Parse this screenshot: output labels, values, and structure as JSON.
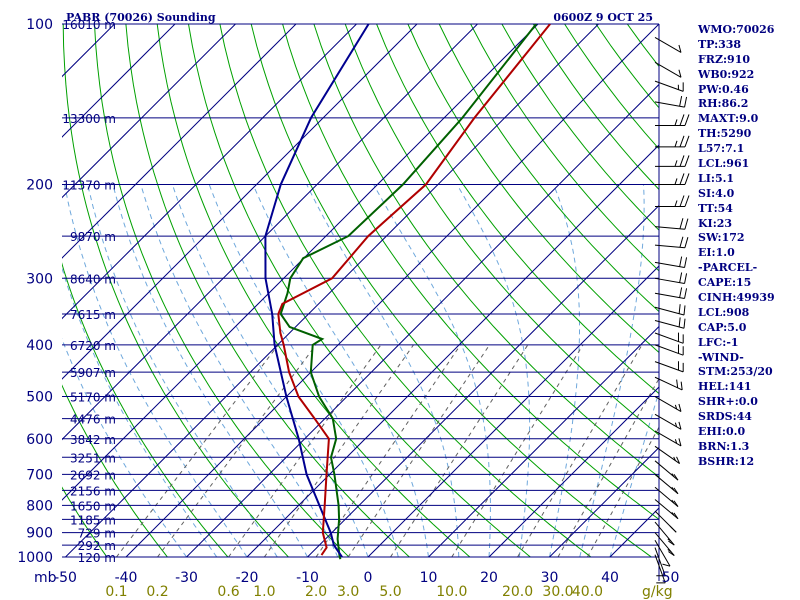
{
  "header": {
    "title": "PABR (70026) Sounding",
    "time": "0600Z  9 OCT 25"
  },
  "chart_data": {
    "type": "line",
    "title": "PABR (70026) Sounding",
    "pressure_levels": [
      100,
      200,
      300,
      400,
      500,
      600,
      700,
      800,
      900,
      1000
    ],
    "height_labels": [
      {
        "p": 100,
        "label": "16010 m"
      },
      {
        "p": 150,
        "label": "13300 m"
      },
      {
        "p": 200,
        "label": "11370 m"
      },
      {
        "p": 250,
        "label": "9870 m"
      },
      {
        "p": 300,
        "label": "8640 m"
      },
      {
        "p": 350,
        "label": "7615 m"
      },
      {
        "p": 400,
        "label": "6720 m"
      },
      {
        "p": 450,
        "label": "5907 m"
      },
      {
        "p": 500,
        "label": "5170 m"
      },
      {
        "p": 550,
        "label": "4476 m"
      },
      {
        "p": 600,
        "label": "3842 m"
      },
      {
        "p": 650,
        "label": "3251 m"
      },
      {
        "p": 700,
        "label": "2692 m"
      },
      {
        "p": 750,
        "label": "2156 m"
      },
      {
        "p": 800,
        "label": "1650 m"
      },
      {
        "p": 850,
        "label": "1185 m"
      },
      {
        "p": 900,
        "label": "729 m"
      },
      {
        "p": 950,
        "label": "292 m"
      },
      {
        "p": 1000,
        "label": "120 m"
      }
    ],
    "temperature_ticks": [
      "-50",
      "-40",
      "-30",
      "-20",
      "-10",
      "0",
      "10",
      "20",
      "30",
      "40",
      "50"
    ],
    "mixing_ratio_ticks": [
      "0.1",
      "0.2",
      "0.6",
      "1.0",
      "2.0",
      "3.0",
      "5.0",
      "10.0",
      "20.0",
      "30.0",
      "40.0"
    ],
    "axis_units": {
      "pressure": "mb",
      "mixing_ratio": "g/kg"
    },
    "series": [
      {
        "kind": "temperature",
        "color": "#006000",
        "points": [
          {
            "p": 1009,
            "t": -4.2
          },
          {
            "p": 1000,
            "t": -4.7
          },
          {
            "p": 925,
            "t": -8.0
          },
          {
            "p": 850,
            "t": -11.0
          },
          {
            "p": 800,
            "t": -13.4
          },
          {
            "p": 700,
            "t": -19.2
          },
          {
            "p": 650,
            "t": -22.6
          },
          {
            "p": 600,
            "t": -24.8
          },
          {
            "p": 550,
            "t": -28.7
          },
          {
            "p": 500,
            "t": -34.6
          },
          {
            "p": 450,
            "t": -40.0
          },
          {
            "p": 400,
            "t": -44.2
          },
          {
            "p": 390,
            "t": -43.6
          },
          {
            "p": 370,
            "t": -51.0
          },
          {
            "p": 350,
            "t": -54.6
          },
          {
            "p": 320,
            "t": -56.9
          },
          {
            "p": 300,
            "t": -58.9
          },
          {
            "p": 275,
            "t": -60.1
          },
          {
            "p": 250,
            "t": -56.3
          },
          {
            "p": 200,
            "t": -55.8
          },
          {
            "p": 150,
            "t": -57.0
          },
          {
            "p": 100,
            "t": -60.3
          }
        ]
      },
      {
        "kind": "dewpoint",
        "color": "#000090",
        "points": [
          {
            "p": 1000,
            "t": -4.3
          },
          {
            "p": 950,
            "t": -7.6
          },
          {
            "p": 900,
            "t": -10.2
          },
          {
            "p": 850,
            "t": -13.3
          },
          {
            "p": 700,
            "t": -23.8
          },
          {
            "p": 600,
            "t": -31.0
          },
          {
            "p": 500,
            "t": -40.0
          },
          {
            "p": 400,
            "t": -50.5
          },
          {
            "p": 350,
            "t": -56.0
          },
          {
            "p": 300,
            "t": -63.0
          },
          {
            "p": 250,
            "t": -70.0
          },
          {
            "p": 200,
            "t": -76.0
          },
          {
            "p": 150,
            "t": -82.0
          },
          {
            "p": 100,
            "t": -88.0
          }
        ]
      },
      {
        "kind": "parcel",
        "color": "#b00000",
        "points": [
          {
            "p": 992,
            "t": -8.0
          },
          {
            "p": 960,
            "t": -8.4
          },
          {
            "p": 900,
            "t": -11.5
          },
          {
            "p": 800,
            "t": -15.7
          },
          {
            "p": 700,
            "t": -20.5
          },
          {
            "p": 600,
            "t": -26.0
          },
          {
            "p": 550,
            "t": -31.7
          },
          {
            "p": 500,
            "t": -38.0
          },
          {
            "p": 450,
            "t": -43.6
          },
          {
            "p": 400,
            "t": -49.0
          },
          {
            "p": 380,
            "t": -51.5
          },
          {
            "p": 350,
            "t": -55.0
          },
          {
            "p": 335,
            "t": -56.0
          },
          {
            "p": 300,
            "t": -52.0
          },
          {
            "p": 250,
            "t": -53.0
          },
          {
            "p": 200,
            "t": -52.0
          },
          {
            "p": 150,
            "t": -55.0
          },
          {
            "p": 100,
            "t": -58.0
          }
        ]
      }
    ],
    "wind_barbs": [
      {
        "p": 106,
        "dir": 240,
        "spd": 10
      },
      {
        "p": 118,
        "dir": 240,
        "spd": 10
      },
      {
        "p": 128,
        "dir": 250,
        "spd": 15
      },
      {
        "p": 140,
        "dir": 260,
        "spd": 20
      },
      {
        "p": 155,
        "dir": 270,
        "spd": 25
      },
      {
        "p": 170,
        "dir": 270,
        "spd": 25
      },
      {
        "p": 185,
        "dir": 270,
        "spd": 25
      },
      {
        "p": 200,
        "dir": 270,
        "spd": 25
      },
      {
        "p": 220,
        "dir": 270,
        "spd": 25
      },
      {
        "p": 240,
        "dir": 265,
        "spd": 20
      },
      {
        "p": 260,
        "dir": 265,
        "spd": 20
      },
      {
        "p": 280,
        "dir": 260,
        "spd": 20
      },
      {
        "p": 300,
        "dir": 260,
        "spd": 20
      },
      {
        "p": 320,
        "dir": 260,
        "spd": 20
      },
      {
        "p": 340,
        "dir": 255,
        "spd": 20
      },
      {
        "p": 360,
        "dir": 255,
        "spd": 20
      },
      {
        "p": 380,
        "dir": 250,
        "spd": 20
      },
      {
        "p": 400,
        "dir": 250,
        "spd": 20
      },
      {
        "p": 430,
        "dir": 250,
        "spd": 20
      },
      {
        "p": 460,
        "dir": 245,
        "spd": 20
      },
      {
        "p": 500,
        "dir": 240,
        "spd": 15
      },
      {
        "p": 540,
        "dir": 240,
        "spd": 15
      },
      {
        "p": 580,
        "dir": 240,
        "spd": 15
      },
      {
        "p": 620,
        "dir": 235,
        "spd": 15
      },
      {
        "p": 660,
        "dir": 230,
        "spd": 15
      },
      {
        "p": 700,
        "dir": 230,
        "spd": 15
      },
      {
        "p": 740,
        "dir": 230,
        "spd": 15
      },
      {
        "p": 780,
        "dir": 230,
        "spd": 15
      },
      {
        "p": 820,
        "dir": 225,
        "spd": 15
      },
      {
        "p": 860,
        "dir": 220,
        "spd": 15
      },
      {
        "p": 900,
        "dir": 220,
        "spd": 15
      },
      {
        "p": 930,
        "dir": 210,
        "spd": 10
      },
      {
        "p": 960,
        "dir": 200,
        "spd": 10
      },
      {
        "p": 990,
        "dir": 200,
        "spd": 10
      }
    ]
  },
  "stats": [
    "WMO:70026",
    "TP:338",
    "FRZ:910",
    "WB0:922",
    "PW:0.46",
    "RH:86.2",
    "MAXT:9.0",
    "TH:5290",
    "L57:7.1",
    "LCL:961",
    "LI:5.1",
    "SI:4.0",
    "TT:54",
    "KI:23",
    "SW:172",
    "EI:1.0",
    "-PARCEL-",
    "CAPE:15",
    "CINH:49939",
    "LCL:908",
    "CAP:5.0",
    "LFC:-1",
    "-WIND-",
    "STM:253/20",
    "HEL:141",
    "SHR+:0.0",
    "SRDS:44",
    "EHI:0.0",
    "BRN:1.3",
    "BSHR:12"
  ],
  "colors": {
    "isobar": "#000080",
    "isotherm": "#000080",
    "dry_adiabat": "#00a000",
    "moist_adiabat": "#6fa8dc",
    "mixing_ratio": "#606060",
    "labels": "#000080",
    "mixing_labels": "#808000"
  }
}
